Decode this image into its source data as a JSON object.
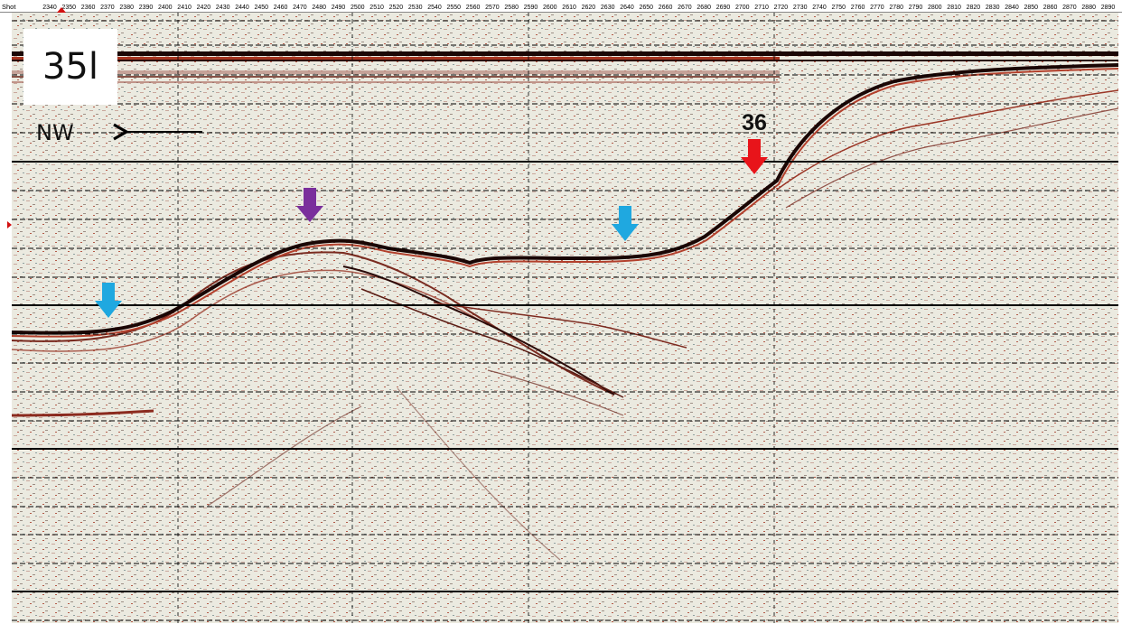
{
  "header": {
    "left_label": "Shot",
    "shot_ticks": [
      "2340",
      "2350",
      "2360",
      "2370",
      "2380",
      "2390",
      "2400",
      "2410",
      "2420",
      "2430",
      "2440",
      "2450",
      "2460",
      "2470",
      "2480",
      "2490",
      "2500",
      "2510",
      "2520",
      "2530",
      "2540",
      "2550",
      "2560",
      "2570",
      "2580",
      "2590",
      "2600",
      "2610",
      "2620",
      "2630",
      "2640",
      "2650",
      "2660",
      "2670",
      "2680",
      "2690",
      "2700",
      "2710",
      "2720",
      "2730",
      "2740",
      "2750",
      "2760",
      "2770",
      "2780",
      "2790",
      "2800",
      "2810",
      "2820",
      "2830",
      "2840",
      "2850",
      "2860",
      "2870",
      "2880",
      "2890"
    ]
  },
  "panel": {
    "label": "35l"
  },
  "direction": {
    "label": "NW",
    "arrow_icon": "arrow-left-icon"
  },
  "annotations": {
    "feature_number": "36",
    "markers": [
      {
        "name": "cyan-arrow-left",
        "color": "#1fa8e0"
      },
      {
        "name": "purple-arrow",
        "color": "#7a2f9c"
      },
      {
        "name": "cyan-arrow-right",
        "color": "#1fa8e0"
      },
      {
        "name": "red-arrow",
        "color": "#e8141a"
      }
    ]
  },
  "colors": {
    "background": "#ecebe2",
    "reflector_dark": "#2a0a08",
    "reflector_red": "#c0392b",
    "grid_line": "#000000"
  }
}
